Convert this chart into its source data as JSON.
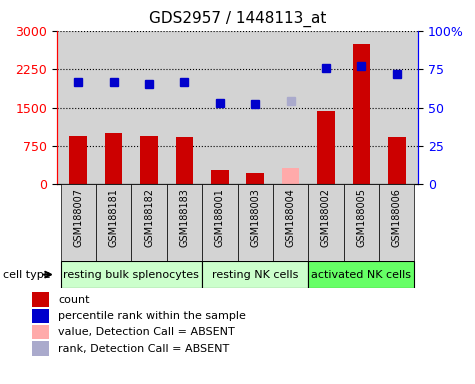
{
  "title": "GDS2957 / 1448113_at",
  "samples": [
    "GSM188007",
    "GSM188181",
    "GSM188182",
    "GSM188183",
    "GSM188001",
    "GSM188003",
    "GSM188004",
    "GSM188002",
    "GSM188005",
    "GSM188006"
  ],
  "counts": [
    950,
    1000,
    950,
    930,
    280,
    230,
    null,
    1430,
    2750,
    920
  ],
  "counts_absent": [
    null,
    null,
    null,
    null,
    null,
    null,
    310,
    null,
    null,
    null
  ],
  "percentile_ranks_raw": [
    2000,
    2000,
    1950,
    2000,
    1580,
    1570,
    null,
    2280,
    2310,
    2150
  ],
  "percentile_ranks_absent_raw": [
    null,
    null,
    null,
    null,
    null,
    null,
    1620,
    null,
    null,
    null
  ],
  "ylim_left": [
    0,
    3000
  ],
  "ylim_right": [
    0,
    100
  ],
  "yticks_left": [
    0,
    750,
    1500,
    2250,
    3000
  ],
  "ytick_right_labels": [
    "0",
    "25",
    "50",
    "75",
    "100%"
  ],
  "yticks_right": [
    0,
    25,
    50,
    75,
    100
  ],
  "groups": [
    {
      "label": "resting bulk splenocytes",
      "start": 0,
      "end": 4,
      "color": "#ccffcc"
    },
    {
      "label": "resting NK cells",
      "start": 4,
      "end": 7,
      "color": "#ccffcc"
    },
    {
      "label": "activated NK cells",
      "start": 7,
      "end": 10,
      "color": "#66ff66"
    }
  ],
  "bar_color_present": "#cc0000",
  "bar_color_absent": "#ffaaaa",
  "dot_color_present": "#0000cc",
  "dot_color_absent": "#aaaacc",
  "bar_width": 0.5,
  "grid_color": "black",
  "bg_color": "#d3d3d3",
  "sample_box_color": "#d3d3d3",
  "legend_items": [
    {
      "label": "count",
      "color": "#cc0000"
    },
    {
      "label": "percentile rank within the sample",
      "color": "#0000cc"
    },
    {
      "label": "value, Detection Call = ABSENT",
      "color": "#ffaaaa"
    },
    {
      "label": "rank, Detection Call = ABSENT",
      "color": "#aaaacc"
    }
  ]
}
